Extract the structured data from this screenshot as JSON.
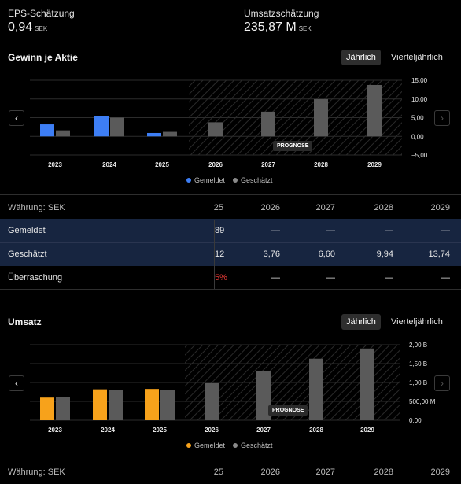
{
  "eps_estimate": {
    "label": "EPS-Schätzung",
    "value": "0,94",
    "unit": "SEK"
  },
  "revenue_estimate": {
    "label": "Umsatzschätzung",
    "value": "235,87 M",
    "unit": "SEK"
  },
  "eps_section": {
    "title": "Gewinn je Aktie",
    "toggle_annual": "Jährlich",
    "toggle_quarterly": "Vierteljährlich",
    "prognose": "PROGNOSE",
    "legend_reported": "Gemeldet",
    "legend_estimated": "Geschätzt"
  },
  "eps_table": {
    "currency_label": "Währung: SEK",
    "headers": [
      "25",
      "2026",
      "2027",
      "2028",
      "2029"
    ],
    "rows": [
      {
        "label": "Gemeldet",
        "values": [
          "89",
          "—",
          "—",
          "—",
          "—"
        ]
      },
      {
        "label": "Geschätzt",
        "values": [
          "12",
          "3,76",
          "6,60",
          "9,94",
          "13,74"
        ]
      },
      {
        "label": "Überraschung",
        "values": [
          "5%",
          "—",
          "—",
          "—",
          "—"
        ]
      }
    ]
  },
  "revenue_section": {
    "title": "Umsatz",
    "toggle_annual": "Jährlich",
    "toggle_quarterly": "Vierteljährlich",
    "prognose": "PROGNOSE",
    "legend_reported": "Gemeldet",
    "legend_estimated": "Geschätzt"
  },
  "revenue_table": {
    "currency_label": "Währung: SEK",
    "headers": [
      "25",
      "2026",
      "2027",
      "2028",
      "2029"
    ]
  },
  "colors": {
    "reported_eps": "#3d7ef5",
    "reported_rev": "#f7a21b",
    "estimated": "#5a5a5a",
    "surprise_negative": "#e53935",
    "table_highlight": "#172540"
  },
  "icons": {
    "nav_left": "chevron-left-icon",
    "nav_right": "chevron-right-icon"
  },
  "chart_data": [
    {
      "type": "bar",
      "categories": [
        "2023",
        "2024",
        "2025",
        "2026",
        "2027",
        "2028",
        "2029"
      ],
      "series": [
        {
          "name": "Gemeldet",
          "values": [
            3.2,
            5.4,
            0.9,
            null,
            null,
            null,
            null
          ]
        },
        {
          "name": "Geschätzt",
          "values": [
            1.6,
            5.0,
            1.2,
            3.76,
            6.6,
            9.94,
            13.74
          ]
        }
      ],
      "yticks": [
        "15,00",
        "10,00",
        "5,00",
        "0,00",
        "−5,00"
      ],
      "ylim": [
        -5,
        15
      ],
      "forecast_from": "2026"
    },
    {
      "type": "bar",
      "categories": [
        "2023",
        "2024",
        "2025",
        "2026",
        "2027",
        "2028",
        "2029"
      ],
      "series": [
        {
          "name": "Gemeldet",
          "values": [
            0.6,
            0.82,
            0.83,
            null,
            null,
            null,
            null
          ]
        },
        {
          "name": "Geschätzt",
          "values": [
            0.62,
            0.81,
            0.8,
            0.98,
            1.3,
            1.63,
            1.9
          ]
        }
      ],
      "yticks": [
        "2,00 B",
        "1,50 B",
        "1,00 B",
        "500,00 M",
        "0,00"
      ],
      "ylim": [
        0,
        2
      ],
      "forecast_from": "2026"
    }
  ]
}
